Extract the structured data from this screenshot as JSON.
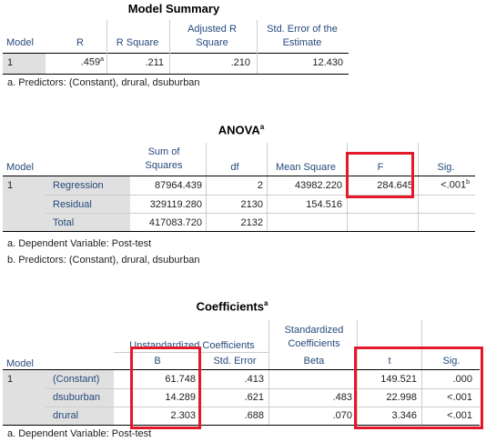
{
  "model_summary": {
    "title": "Model Summary",
    "headers": {
      "model": "Model",
      "r": "R",
      "r_square": "R Square",
      "adj_r_square": "Adjusted R Square",
      "se_estimate": "Std. Error of the Estimate"
    },
    "adj_line1": "Adjusted R",
    "adj_line2": "Square",
    "se_line1": "Std. Error of the",
    "se_line2": "Estimate",
    "row": {
      "model": "1",
      "r": ".459",
      "r_sup": "a",
      "r_square": ".211",
      "adj_r_square": ".210",
      "se_estimate": "12.430"
    },
    "notes": [
      "a. Predictors: (Constant), drural, dsuburban"
    ]
  },
  "anova": {
    "title": "ANOVA",
    "title_sup": "a",
    "headers": {
      "model": "Model",
      "ss_line1": "Sum of",
      "ss_line2": "Squares",
      "df": "df",
      "ms": "Mean Square",
      "f": "F",
      "sig": "Sig."
    },
    "rows": [
      {
        "label": "Regression",
        "ss": "87964.439",
        "df": "2",
        "ms": "43982.220",
        "f": "284.645",
        "sig": "<.001",
        "sig_sup": "b"
      },
      {
        "label": "Residual",
        "ss": "329119.280",
        "df": "2130",
        "ms": "154.516",
        "f": "",
        "sig": ""
      },
      {
        "label": "Total",
        "ss": "417083.720",
        "df": "2132",
        "ms": "",
        "f": "",
        "sig": ""
      }
    ],
    "model_num": "1",
    "notes": [
      "a. Dependent Variable: Post-test",
      "b. Predictors: (Constant), drural, dsuburban"
    ]
  },
  "coefficients": {
    "title": "Coefficients",
    "title_sup": "a",
    "headers": {
      "model": "Model",
      "unstd": "Unstandardized Coefficients",
      "b": "B",
      "se": "Std. Error",
      "std_line1": "Standardized",
      "std_line2": "Coefficients",
      "beta": "Beta",
      "t": "t",
      "sig": "Sig."
    },
    "rows": [
      {
        "label": "(Constant)",
        "b": "61.748",
        "se": ".413",
        "beta": "",
        "t": "149.521",
        "sig": ".000"
      },
      {
        "label": "dsuburban",
        "b": "14.289",
        "se": ".621",
        "beta": ".483",
        "t": "22.998",
        "sig": "<.001"
      },
      {
        "label": "drural",
        "b": "2.303",
        "se": ".688",
        "beta": ".070",
        "t": "3.346",
        "sig": "<.001"
      }
    ],
    "model_num": "1",
    "notes": [
      "a. Dependent Variable: Post-test"
    ]
  },
  "colors": {
    "header_text": "#264a7c",
    "highlight_box": "#e3192a",
    "shade": "#e0e0e0"
  }
}
